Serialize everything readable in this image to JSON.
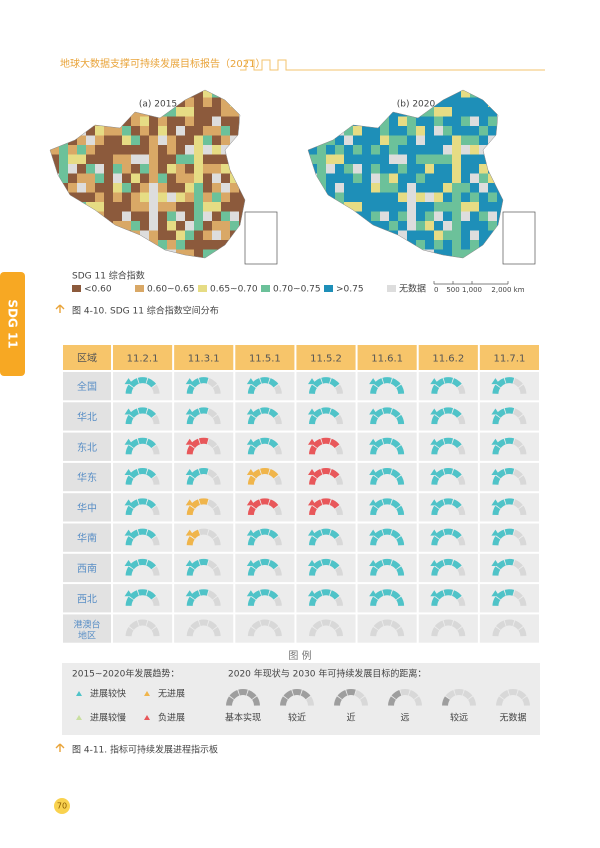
{
  "header": {
    "title": "地球大数据支撑可持续发展目标报告（2021）"
  },
  "side_tab": "SDG 11",
  "figure_1": {
    "panels": [
      "(a) 2015",
      "(b) 2020"
    ],
    "legend_title": "SDG 11 综合指数",
    "legend": [
      {
        "label": "<0.60",
        "color": "#8c5a3c"
      },
      {
        "label": "0.60~0.65",
        "color": "#d9a866"
      },
      {
        "label": "0.65~0.70",
        "color": "#e6dc84"
      },
      {
        "label": "0.70~0.75",
        "color": "#6cc19a"
      },
      {
        "label": ">0.75",
        "color": "#1e8fb8"
      },
      {
        "label": "无数据",
        "color": "#dddddd"
      }
    ],
    "scale": [
      "0",
      "500",
      "1,000",
      "2,000 km"
    ],
    "caption": "图 4-10. SDG 11 综合指数空间分布"
  },
  "table": {
    "header": [
      "区域",
      "11.2.1",
      "11.3.1",
      "11.5.1",
      "11.5.2",
      "11.6.1",
      "11.6.2",
      "11.7.1"
    ],
    "regions": [
      "全国",
      "华北",
      "东北",
      "华东",
      "华中",
      "华南",
      "西南",
      "西北",
      "港澳台地区"
    ],
    "cells": [
      [
        {
          "color": "#4fc3c8",
          "level": 4
        },
        {
          "color": "#4fc3c8",
          "level": 3
        },
        {
          "color": "#4fc3c8",
          "level": 4
        },
        {
          "color": "#4fc3c8",
          "level": 4
        },
        {
          "color": "#4fc3c8",
          "level": 5
        },
        {
          "color": "#4fc3c8",
          "level": 4
        },
        {
          "color": "#4fc3c8",
          "level": 3
        }
      ],
      [
        {
          "color": "#4fc3c8",
          "level": 4
        },
        {
          "color": "#4fc3c8",
          "level": 3
        },
        {
          "color": "#4fc3c8",
          "level": 4
        },
        {
          "color": "#4fc3c8",
          "level": 4
        },
        {
          "color": "#4fc3c8",
          "level": 5
        },
        {
          "color": "#4fc3c8",
          "level": 4
        },
        {
          "color": "#4fc3c8",
          "level": 3
        }
      ],
      [
        {
          "color": "#4fc3c8",
          "level": 4
        },
        {
          "color": "#e8575a",
          "level": 3
        },
        {
          "color": "#4fc3c8",
          "level": 4
        },
        {
          "color": "#e8575a",
          "level": 4
        },
        {
          "color": "#4fc3c8",
          "level": 5
        },
        {
          "color": "#4fc3c8",
          "level": 4
        },
        {
          "color": "#4fc3c8",
          "level": 3
        }
      ],
      [
        {
          "color": "#4fc3c8",
          "level": 4
        },
        {
          "color": "#4fc3c8",
          "level": 3
        },
        {
          "color": "#f0b54b",
          "level": 4
        },
        {
          "color": "#e8575a",
          "level": 4
        },
        {
          "color": "#4fc3c8",
          "level": 5
        },
        {
          "color": "#4fc3c8",
          "level": 4
        },
        {
          "color": "#4fc3c8",
          "level": 3
        }
      ],
      [
        {
          "color": "#4fc3c8",
          "level": 4
        },
        {
          "color": "#f0b54b",
          "level": 3
        },
        {
          "color": "#e8575a",
          "level": 4
        },
        {
          "color": "#e8575a",
          "level": 4
        },
        {
          "color": "#4fc3c8",
          "level": 5
        },
        {
          "color": "#4fc3c8",
          "level": 4
        },
        {
          "color": "#4fc3c8",
          "level": 3
        }
      ],
      [
        {
          "color": "#4fc3c8",
          "level": 4
        },
        {
          "color": "#f0b54b",
          "level": 2
        },
        {
          "color": "#4fc3c8",
          "level": 4
        },
        {
          "color": "#4fc3c8",
          "level": 4
        },
        {
          "color": "#4fc3c8",
          "level": 5
        },
        {
          "color": "#4fc3c8",
          "level": 4
        },
        {
          "color": "#4fc3c8",
          "level": 3
        }
      ],
      [
        {
          "color": "#4fc3c8",
          "level": 4
        },
        {
          "color": "#4fc3c8",
          "level": 3
        },
        {
          "color": "#4fc3c8",
          "level": 4
        },
        {
          "color": "#4fc3c8",
          "level": 4
        },
        {
          "color": "#4fc3c8",
          "level": 5
        },
        {
          "color": "#4fc3c8",
          "level": 4
        },
        {
          "color": "#4fc3c8",
          "level": 3
        }
      ],
      [
        {
          "color": "#4fc3c8",
          "level": 4
        },
        {
          "color": "#4fc3c8",
          "level": 3
        },
        {
          "color": "#4fc3c8",
          "level": 4
        },
        {
          "color": "#4fc3c8",
          "level": 4
        },
        {
          "color": "#4fc3c8",
          "level": 5
        },
        {
          "color": "#4fc3c8",
          "level": 4
        },
        {
          "color": "#4fc3c8",
          "level": 3
        }
      ],
      [
        {
          "color": "#cccccc",
          "level": 0
        },
        {
          "color": "#cccccc",
          "level": 0
        },
        {
          "color": "#cccccc",
          "level": 0
        },
        {
          "color": "#cccccc",
          "level": 0
        },
        {
          "color": "#cccccc",
          "level": 0
        },
        {
          "color": "#cccccc",
          "level": 0
        },
        {
          "color": "#cccccc",
          "level": 0
        }
      ]
    ]
  },
  "legend_box": {
    "title": "图 例",
    "trend_title": "2015~2020年发展趋势：",
    "trends": [
      {
        "label": "进展较快",
        "color": "#4fc3c8"
      },
      {
        "label": "无进展",
        "color": "#f0b54b"
      },
      {
        "label": "进展较慢",
        "color": "#c9dfa0"
      },
      {
        "label": "负进展",
        "color": "#e8575a"
      }
    ],
    "distance_title": "2020 年现状与 2030 年可持续发展目标的距离：",
    "distances": [
      {
        "label": "基本实现",
        "level": 5
      },
      {
        "label": "较近",
        "level": 4
      },
      {
        "label": "近",
        "level": 3
      },
      {
        "label": "远",
        "level": 2
      },
      {
        "label": "较远",
        "level": 1
      },
      {
        "label": "无数据",
        "level": 0
      }
    ]
  },
  "figure_2": {
    "caption": "图 4-11. 指标可持续发展进程指示板"
  },
  "page_number": "70"
}
